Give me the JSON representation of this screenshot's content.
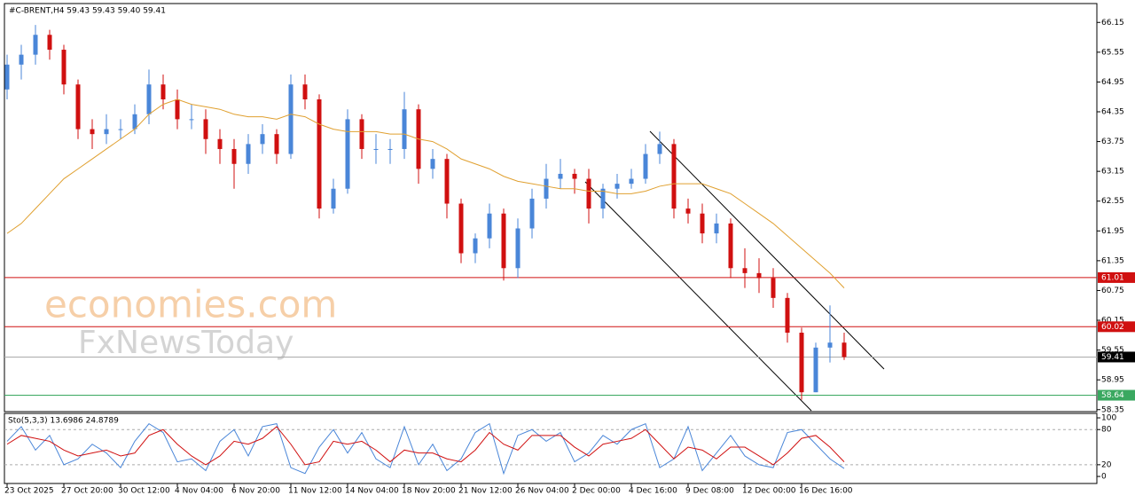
{
  "chart_data": {
    "type": "candlestick",
    "title": "#C-BRENT,H4  59.43 59.43 59.40 59.41",
    "x": [
      "23 Oct 2025",
      null,
      null,
      null,
      "27 Oct 20:00",
      null,
      null,
      null,
      "30 Oct 12:00",
      null,
      null,
      null,
      "4 Nov 04:00",
      null,
      null,
      null,
      "6 Nov 20:00",
      null,
      null,
      null,
      "11 Nov 12:00",
      null,
      null,
      null,
      "14 Nov 04:00",
      null,
      null,
      null,
      "18 Nov 20:00",
      null,
      null,
      null,
      "21 Nov 12:00",
      null,
      null,
      null,
      "26 Nov 04:00",
      null,
      null,
      null,
      "2 Dec 00:00",
      null,
      null,
      null,
      "4 Dec 16:00",
      null,
      null,
      null,
      "9 Dec 08:00",
      null,
      null,
      null,
      "12 Dec 00:00",
      null,
      null,
      null,
      "16 Dec 16:00",
      null,
      null,
      null
    ],
    "open": [
      64.8,
      65.3,
      65.5,
      65.9,
      65.6,
      64.9,
      64.0,
      63.9,
      64.0,
      64.0,
      64.3,
      64.9,
      64.6,
      64.2,
      64.2,
      63.8,
      63.6,
      63.3,
      63.7,
      63.9,
      63.5,
      64.9,
      64.6,
      62.4,
      62.8,
      64.2,
      63.6,
      63.6,
      63.6,
      64.4,
      63.2,
      63.4,
      62.5,
      61.5,
      61.8,
      62.3,
      61.2,
      62.0,
      62.6,
      63.0,
      63.1,
      63.0,
      62.4,
      62.8,
      62.9,
      63.0,
      63.5,
      63.7,
      62.4,
      62.3,
      61.9,
      62.1,
      61.2,
      61.1,
      61.0,
      60.6,
      59.9,
      58.7,
      59.6,
      59.7
    ],
    "high": [
      65.5,
      65.7,
      66.1,
      66.0,
      65.7,
      65.0,
      64.2,
      64.3,
      64.2,
      64.5,
      65.2,
      65.1,
      64.8,
      64.5,
      64.4,
      64.0,
      63.8,
      63.9,
      64.1,
      64.0,
      65.1,
      65.1,
      64.7,
      63.0,
      64.4,
      64.3,
      63.9,
      63.8,
      64.75,
      64.5,
      63.6,
      63.5,
      62.6,
      61.9,
      62.5,
      62.4,
      62.2,
      62.8,
      63.3,
      63.4,
      63.2,
      63.2,
      62.9,
      63.1,
      63.2,
      63.7,
      63.95,
      63.8,
      62.6,
      62.5,
      62.3,
      62.2,
      61.6,
      61.4,
      61.2,
      60.7,
      60.0,
      59.7,
      60.45,
      59.9
    ],
    "low": [
      64.6,
      65.0,
      65.3,
      65.4,
      64.7,
      63.8,
      63.6,
      63.7,
      63.8,
      63.9,
      64.1,
      64.4,
      64.0,
      64.0,
      63.5,
      63.3,
      62.8,
      63.1,
      63.5,
      63.3,
      63.4,
      64.4,
      62.2,
      62.3,
      62.7,
      63.4,
      63.3,
      63.3,
      63.4,
      62.9,
      63.0,
      62.2,
      61.3,
      61.3,
      61.6,
      60.95,
      61.0,
      61.8,
      62.4,
      62.8,
      62.7,
      62.1,
      62.2,
      62.6,
      62.8,
      62.9,
      63.3,
      62.2,
      62.1,
      61.7,
      61.7,
      61.0,
      60.8,
      60.7,
      60.4,
      59.7,
      58.55,
      58.7,
      59.3,
      59.35
    ],
    "close": [
      65.3,
      65.5,
      65.9,
      65.6,
      64.9,
      64.0,
      63.9,
      64.0,
      64.0,
      64.3,
      64.9,
      64.6,
      64.2,
      64.2,
      63.8,
      63.6,
      63.3,
      63.7,
      63.9,
      63.5,
      64.9,
      64.6,
      62.4,
      62.8,
      64.2,
      63.6,
      63.6,
      63.6,
      64.4,
      63.2,
      63.4,
      62.5,
      61.5,
      61.8,
      62.3,
      61.2,
      62.0,
      62.6,
      63.0,
      63.1,
      63.0,
      62.4,
      62.8,
      62.9,
      63.0,
      63.5,
      63.7,
      62.4,
      62.3,
      61.9,
      62.1,
      61.2,
      61.1,
      61.0,
      60.6,
      59.9,
      58.7,
      59.6,
      59.7,
      59.41
    ],
    "up_color": "#4a86d8",
    "down_color": "#d01010",
    "ylim": [
      58.31,
      66.53
    ],
    "yticks": [
      66.15,
      65.55,
      64.95,
      64.35,
      63.75,
      63.15,
      62.55,
      61.95,
      61.35,
      60.75,
      60.15,
      59.55,
      58.95,
      58.35
    ],
    "ma": {
      "color": "#e0a030",
      "values": [
        61.9,
        62.1,
        62.4,
        62.7,
        63.0,
        63.2,
        63.4,
        63.6,
        63.8,
        64.0,
        64.3,
        64.5,
        64.6,
        64.5,
        64.45,
        64.4,
        64.3,
        64.25,
        64.25,
        64.2,
        64.3,
        64.25,
        64.1,
        64.0,
        63.95,
        63.95,
        63.95,
        63.9,
        63.9,
        63.8,
        63.75,
        63.6,
        63.4,
        63.3,
        63.2,
        63.05,
        62.95,
        62.9,
        62.85,
        62.8,
        62.8,
        62.75,
        62.75,
        62.7,
        62.7,
        62.75,
        62.85,
        62.9,
        62.9,
        62.9,
        62.8,
        62.7,
        62.5,
        62.3,
        62.1,
        61.85,
        61.6,
        61.35,
        61.1,
        60.8
      ]
    },
    "levels": [
      {
        "value": 61.01,
        "color": "#d01010"
      },
      {
        "value": 60.02,
        "color": "#d01010"
      },
      {
        "value": 59.41,
        "color": "#000000"
      },
      {
        "value": 58.64,
        "color": "#3aa860"
      }
    ],
    "stoch": {
      "label": "Sto(5,3,3) 13.6986 24.8789",
      "ylim": [
        -12,
        107.6
      ],
      "yticks": [
        100,
        80,
        20,
        0
      ],
      "levels": [
        80,
        20
      ],
      "k": {
        "color": "#4a86d8",
        "values": [
          60,
          85,
          45,
          70,
          20,
          30,
          55,
          40,
          15,
          60,
          90,
          75,
          25,
          30,
          10,
          60,
          80,
          35,
          85,
          90,
          15,
          5,
          50,
          80,
          40,
          75,
          30,
          15,
          85,
          20,
          55,
          10,
          30,
          75,
          90,
          5,
          70,
          80,
          60,
          75,
          25,
          40,
          70,
          55,
          80,
          90,
          15,
          30,
          85,
          10,
          40,
          70,
          35,
          20,
          15,
          75,
          80,
          55,
          30,
          13.6986
        ]
      },
      "d": {
        "color": "#d01010",
        "values": [
          55,
          70,
          65,
          60,
          45,
          35,
          40,
          45,
          35,
          40,
          70,
          80,
          55,
          35,
          20,
          35,
          60,
          55,
          65,
          85,
          55,
          20,
          25,
          60,
          55,
          60,
          45,
          25,
          45,
          40,
          40,
          30,
          25,
          45,
          75,
          55,
          45,
          70,
          70,
          70,
          50,
          35,
          55,
          60,
          65,
          80,
          55,
          30,
          50,
          45,
          30,
          50,
          50,
          35,
          20,
          40,
          65,
          70,
          50,
          24.8789
        ]
      }
    },
    "watermark": [
      "economies.com",
      "FxNewsToday"
    ]
  }
}
